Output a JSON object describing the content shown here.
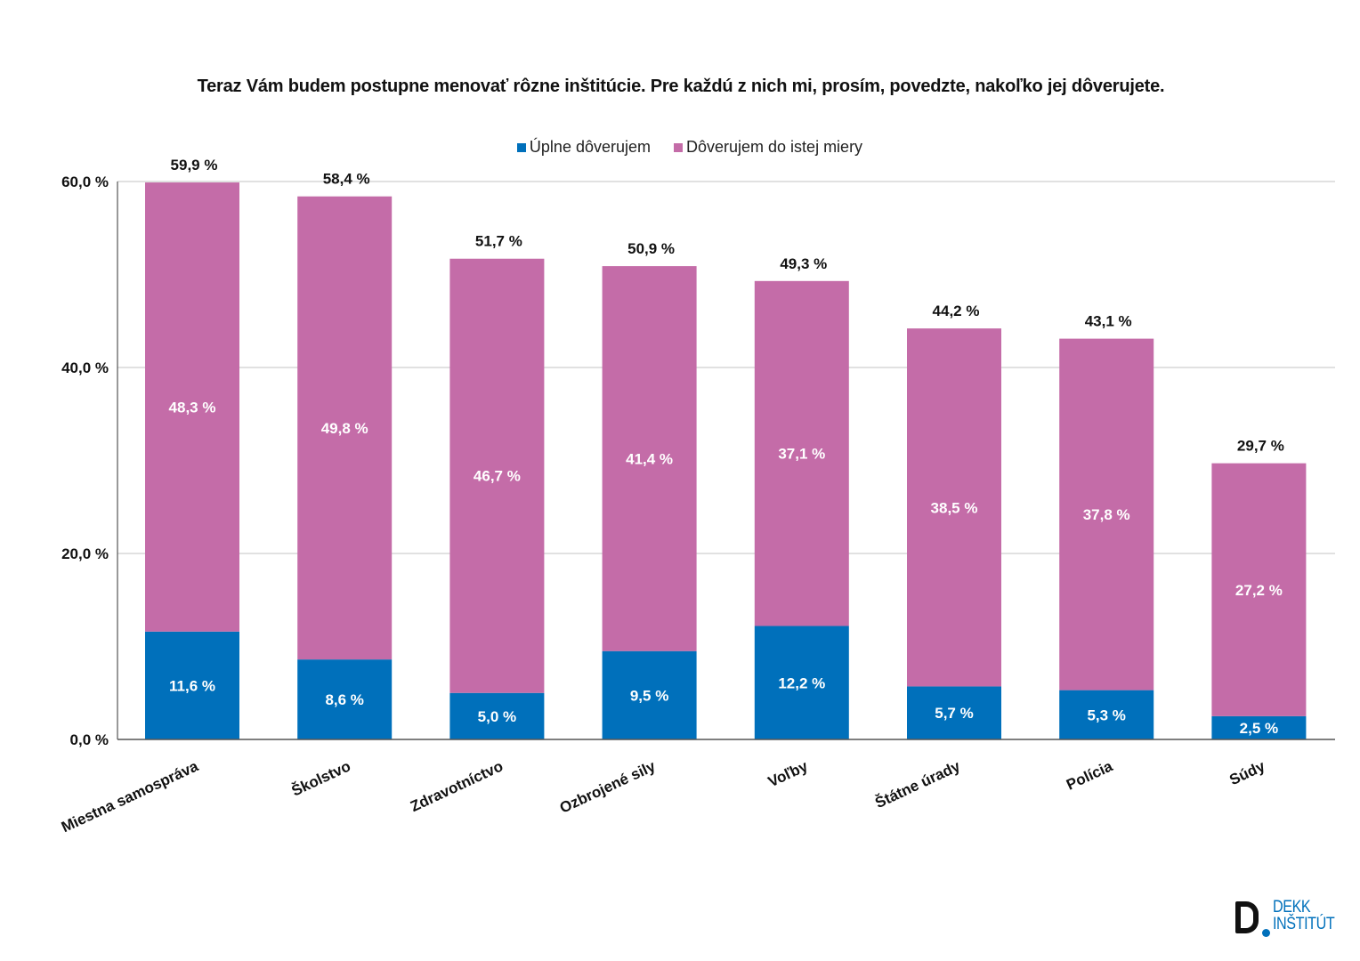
{
  "chart_data": {
    "type": "bar",
    "stacked": true,
    "title": "Teraz Vám budem postupne menovať rôzne inštitúcie. Pre každú z nich mi, prosím, povedzte, nakoľko jej dôverujete.",
    "xlabel": "",
    "ylabel": "",
    "ylim": [
      0,
      60
    ],
    "yticks": [
      0,
      20,
      40,
      60
    ],
    "ytick_labels": [
      "0,0 %",
      "20,0 %",
      "40,0 %",
      "60,0 %"
    ],
    "grid": true,
    "legend_position": "top-center",
    "categories": [
      "Miestna samospráva",
      "Školstvo",
      "Zdravotníctvo",
      "Ozbrojené sily",
      "Voľby",
      "Štátne úrady",
      "Polícia",
      "Súdy"
    ],
    "series": [
      {
        "name": "Úplne dôverujem",
        "color": "#0070bb",
        "values": [
          11.6,
          8.6,
          5.0,
          9.5,
          12.2,
          5.7,
          5.3,
          2.5
        ],
        "labels": [
          "11,6 %",
          "8,6 %",
          "5,0 %",
          "9,5 %",
          "12,2 %",
          "5,7 %",
          "5,3 %",
          "2,5 %"
        ]
      },
      {
        "name": "Dôverujem do istej miery",
        "color": "#c46ca8",
        "values": [
          48.3,
          49.8,
          46.7,
          41.4,
          37.1,
          38.5,
          37.8,
          27.2
        ],
        "labels": [
          "48,3 %",
          "49,8 %",
          "46,7 %",
          "41,4 %",
          "37,1 %",
          "38,5 %",
          "37,8 %",
          "27,2 %"
        ]
      }
    ],
    "totals": [
      59.9,
      58.4,
      51.7,
      50.9,
      49.3,
      44.2,
      43.1,
      29.7
    ],
    "total_labels": [
      "59,9 %",
      "58,4 %",
      "51,7 %",
      "50,9 %",
      "49,3 %",
      "44,2 %",
      "43,1 %",
      "29,7 %"
    ]
  },
  "legend": [
    {
      "label": "Úplne dôverujem",
      "color": "#0070bb"
    },
    {
      "label": "Dôverujem do istej miery",
      "color": "#c46ca8"
    }
  ],
  "logo": {
    "line1": "DEKK",
    "line2": "INŠTITÚT",
    "accent": "#0070bb",
    "icon": "dekk-logo-icon"
  }
}
